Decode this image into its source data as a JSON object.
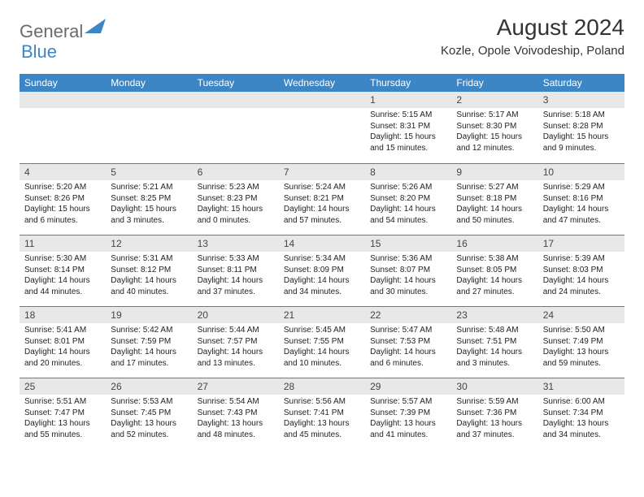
{
  "logo": {
    "text1": "General",
    "text2": "Blue"
  },
  "title": "August 2024",
  "location": "Kozle, Opole Voivodeship, Poland",
  "colors": {
    "header_bg": "#3d86c6",
    "header_text": "#ffffff",
    "daynum_bg": "#e8e8e8",
    "row_divider": "#3d86c6",
    "logo_gray": "#6a6a6a",
    "logo_blue": "#3d86c6"
  },
  "day_headers": [
    "Sunday",
    "Monday",
    "Tuesday",
    "Wednesday",
    "Thursday",
    "Friday",
    "Saturday"
  ],
  "weeks": [
    [
      null,
      null,
      null,
      null,
      {
        "n": "1",
        "sr": "5:15 AM",
        "ss": "8:31 PM",
        "dl": "15 hours and 15 minutes."
      },
      {
        "n": "2",
        "sr": "5:17 AM",
        "ss": "8:30 PM",
        "dl": "15 hours and 12 minutes."
      },
      {
        "n": "3",
        "sr": "5:18 AM",
        "ss": "8:28 PM",
        "dl": "15 hours and 9 minutes."
      }
    ],
    [
      {
        "n": "4",
        "sr": "5:20 AM",
        "ss": "8:26 PM",
        "dl": "15 hours and 6 minutes."
      },
      {
        "n": "5",
        "sr": "5:21 AM",
        "ss": "8:25 PM",
        "dl": "15 hours and 3 minutes."
      },
      {
        "n": "6",
        "sr": "5:23 AM",
        "ss": "8:23 PM",
        "dl": "15 hours and 0 minutes."
      },
      {
        "n": "7",
        "sr": "5:24 AM",
        "ss": "8:21 PM",
        "dl": "14 hours and 57 minutes."
      },
      {
        "n": "8",
        "sr": "5:26 AM",
        "ss": "8:20 PM",
        "dl": "14 hours and 54 minutes."
      },
      {
        "n": "9",
        "sr": "5:27 AM",
        "ss": "8:18 PM",
        "dl": "14 hours and 50 minutes."
      },
      {
        "n": "10",
        "sr": "5:29 AM",
        "ss": "8:16 PM",
        "dl": "14 hours and 47 minutes."
      }
    ],
    [
      {
        "n": "11",
        "sr": "5:30 AM",
        "ss": "8:14 PM",
        "dl": "14 hours and 44 minutes."
      },
      {
        "n": "12",
        "sr": "5:31 AM",
        "ss": "8:12 PM",
        "dl": "14 hours and 40 minutes."
      },
      {
        "n": "13",
        "sr": "5:33 AM",
        "ss": "8:11 PM",
        "dl": "14 hours and 37 minutes."
      },
      {
        "n": "14",
        "sr": "5:34 AM",
        "ss": "8:09 PM",
        "dl": "14 hours and 34 minutes."
      },
      {
        "n": "15",
        "sr": "5:36 AM",
        "ss": "8:07 PM",
        "dl": "14 hours and 30 minutes."
      },
      {
        "n": "16",
        "sr": "5:38 AM",
        "ss": "8:05 PM",
        "dl": "14 hours and 27 minutes."
      },
      {
        "n": "17",
        "sr": "5:39 AM",
        "ss": "8:03 PM",
        "dl": "14 hours and 24 minutes."
      }
    ],
    [
      {
        "n": "18",
        "sr": "5:41 AM",
        "ss": "8:01 PM",
        "dl": "14 hours and 20 minutes."
      },
      {
        "n": "19",
        "sr": "5:42 AM",
        "ss": "7:59 PM",
        "dl": "14 hours and 17 minutes."
      },
      {
        "n": "20",
        "sr": "5:44 AM",
        "ss": "7:57 PM",
        "dl": "14 hours and 13 minutes."
      },
      {
        "n": "21",
        "sr": "5:45 AM",
        "ss": "7:55 PM",
        "dl": "14 hours and 10 minutes."
      },
      {
        "n": "22",
        "sr": "5:47 AM",
        "ss": "7:53 PM",
        "dl": "14 hours and 6 minutes."
      },
      {
        "n": "23",
        "sr": "5:48 AM",
        "ss": "7:51 PM",
        "dl": "14 hours and 3 minutes."
      },
      {
        "n": "24",
        "sr": "5:50 AM",
        "ss": "7:49 PM",
        "dl": "13 hours and 59 minutes."
      }
    ],
    [
      {
        "n": "25",
        "sr": "5:51 AM",
        "ss": "7:47 PM",
        "dl": "13 hours and 55 minutes."
      },
      {
        "n": "26",
        "sr": "5:53 AM",
        "ss": "7:45 PM",
        "dl": "13 hours and 52 minutes."
      },
      {
        "n": "27",
        "sr": "5:54 AM",
        "ss": "7:43 PM",
        "dl": "13 hours and 48 minutes."
      },
      {
        "n": "28",
        "sr": "5:56 AM",
        "ss": "7:41 PM",
        "dl": "13 hours and 45 minutes."
      },
      {
        "n": "29",
        "sr": "5:57 AM",
        "ss": "7:39 PM",
        "dl": "13 hours and 41 minutes."
      },
      {
        "n": "30",
        "sr": "5:59 AM",
        "ss": "7:36 PM",
        "dl": "13 hours and 37 minutes."
      },
      {
        "n": "31",
        "sr": "6:00 AM",
        "ss": "7:34 PM",
        "dl": "13 hours and 34 minutes."
      }
    ]
  ],
  "labels": {
    "sunrise": "Sunrise: ",
    "sunset": "Sunset: ",
    "daylight": "Daylight: "
  }
}
